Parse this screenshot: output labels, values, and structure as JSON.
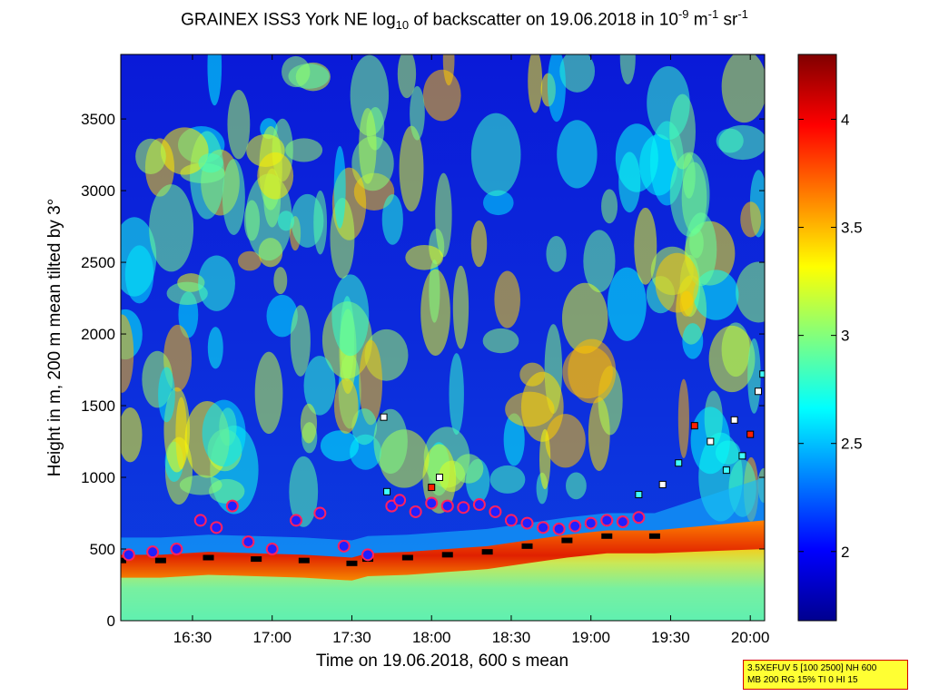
{
  "title": {
    "prefix": "GRAINEX ISS3 York NE log",
    "sub": "10",
    "mid": " of backscatter on 19.06.2018 in 10",
    "sup1": "-9",
    "unit1": " m",
    "sup2": "-1",
    "unit2": " sr",
    "sup3": "-1"
  },
  "chart_data": {
    "type": "heatmap",
    "xlabel": "Time on 19.06.2018, 600 s mean",
    "ylabel": "Height in m, 200 m mean tilted by 3°",
    "x_ticks": [
      "16:30",
      "17:00",
      "17:30",
      "18:00",
      "18:30",
      "19:00",
      "19:30",
      "20:00"
    ],
    "x_tick_hours": [
      16.5,
      17.0,
      17.5,
      18.0,
      18.5,
      19.0,
      19.5,
      20.0
    ],
    "xlim_hours": [
      16.05,
      20.09
    ],
    "y_ticks": [
      0,
      500,
      1000,
      1500,
      2000,
      2500,
      3000,
      3500
    ],
    "ylim": [
      0,
      3950
    ],
    "colorbar": {
      "ticks": [
        2,
        2.5,
        3,
        3.5,
        4
      ],
      "tick_labels": [
        "2",
        "2.5",
        "3",
        "3.5",
        "4"
      ],
      "range": [
        1.68,
        4.3
      ],
      "colormap": "jet"
    },
    "mixing_layer_height": {
      "marker": "black-squares",
      "hours": [
        16.05,
        16.3,
        16.6,
        16.9,
        17.2,
        17.5,
        17.6,
        17.85,
        18.1,
        18.35,
        18.6,
        18.85,
        19.1,
        19.4
      ],
      "heights": [
        420,
        420,
        440,
        430,
        420,
        400,
        430,
        440,
        460,
        480,
        520,
        560,
        590,
        590
      ]
    },
    "cloud_base_or_layer_tops": {
      "marker": "red-circles-blue-fill",
      "hours": [
        16.1,
        16.25,
        16.4,
        16.55,
        16.65,
        16.75,
        16.85,
        17.0,
        17.15,
        17.3,
        17.45,
        17.6,
        17.75,
        17.8,
        17.9,
        18.0,
        18.1,
        18.2,
        18.3,
        18.4,
        18.5,
        18.6,
        18.7,
        18.8,
        18.9,
        19.0,
        19.1,
        19.2,
        19.3
      ],
      "heights": [
        460,
        480,
        500,
        700,
        650,
        800,
        550,
        500,
        700,
        750,
        520,
        460,
        800,
        840,
        760,
        820,
        800,
        790,
        810,
        760,
        700,
        680,
        650,
        640,
        660,
        680,
        700,
        690,
        720
      ]
    },
    "aerosol_layers": {
      "marker": "colored-squares",
      "hours": [
        17.7,
        17.72,
        18.0,
        18.05,
        19.3,
        19.45,
        19.55,
        19.65,
        19.75,
        19.85,
        19.9,
        19.95,
        20.0,
        20.05,
        20.08
      ],
      "heights": [
        1420,
        900,
        930,
        1000,
        880,
        950,
        1100,
        1360,
        1250,
        1050,
        1400,
        1150,
        1300,
        1600,
        1720
      ]
    }
  },
  "settings_text": {
    "line1": "3.5XEFUV 5 [100 2500] NH 600",
    "line2": "MB 200 RG 15% TI 0 HI 15"
  }
}
